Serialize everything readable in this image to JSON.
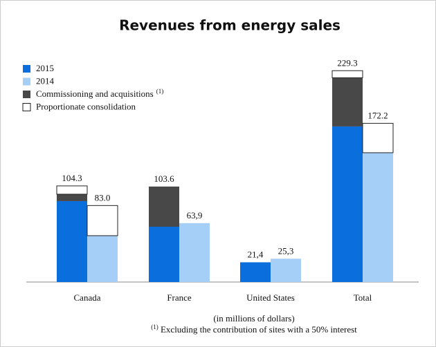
{
  "chart_data": {
    "type": "stacked-bar-pairs",
    "title": "Revenues from energy sales",
    "categories": [
      "Canada",
      "France",
      "United States",
      "Total"
    ],
    "series": [
      {
        "name": "2015",
        "color": "#0a6fdc",
        "values": [
          [
            87.8,
            null
          ],
          [
            60.0,
            null
          ],
          [
            21.4,
            null
          ],
          [
            168.8,
            null
          ]
        ]
      },
      {
        "name": "2014",
        "color": "#a6cff7",
        "values": [
          [
            null,
            50.3
          ],
          [
            null,
            63.9
          ],
          [
            null,
            25.3
          ],
          [
            null,
            140.3
          ]
        ]
      },
      {
        "name": "Commissioning and acquisitions",
        "color": "#484848",
        "values": [
          [
            7.5,
            null
          ],
          [
            43.6,
            null
          ],
          [
            null,
            null
          ],
          [
            52.8,
            null
          ]
        ]
      },
      {
        "name": "Proportionate consolidation",
        "color": "#ffffff",
        "values": [
          [
            9.0,
            32.7
          ],
          [
            null,
            null
          ],
          [
            null,
            null
          ],
          [
            7.7,
            31.9
          ]
        ]
      }
    ],
    "totals": [
      [
        104.3,
        83.0
      ],
      [
        103.6,
        63.9
      ],
      [
        21.4,
        25.3
      ],
      [
        229.3,
        172.2
      ]
    ],
    "value_labels": [
      [
        "104.3",
        "83.0"
      ],
      [
        "103.6",
        "63,9"
      ],
      [
        "21,4",
        "25,3"
      ],
      [
        "229.3",
        "172.2"
      ]
    ],
    "note_marker": "(1)",
    "unit_note": "(in millions of dollars)",
    "footnote": "Excluding the contribution of sites with a 50% interest",
    "ylim": [
      0,
      240
    ]
  }
}
